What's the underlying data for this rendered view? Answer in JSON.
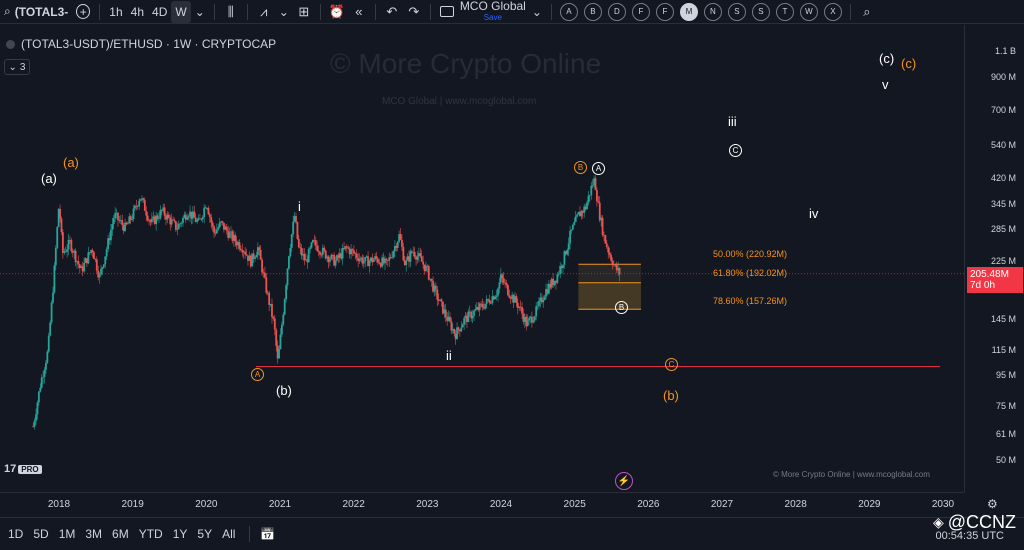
{
  "toolbar": {
    "symbol": "(TOTAL3-",
    "intervals": [
      "1h",
      "4h",
      "4D",
      "W"
    ],
    "active_interval": "W",
    "layout_name": "MCO Global",
    "layout_save": "Save",
    "circle_buttons": [
      "A",
      "B",
      "D",
      "F",
      "F",
      "M",
      "N",
      "S",
      "S",
      "T",
      "W",
      "X"
    ],
    "active_circle": "M"
  },
  "legend": {
    "title": "(TOTAL3-USDT)/ETHUSD · 1W · CRYPTOCAP",
    "collapse_count": "3"
  },
  "watermark": {
    "main": "© More Crypto Online",
    "sub": "MCO Global   |   www.mcoglobal.com"
  },
  "credit": "© More Crypto Online   |   www.mcoglobal.com",
  "tv_logo": {
    "mark": "17",
    "pro": "PRO"
  },
  "price_axis": {
    "ticks": [
      "1.1 B",
      "900 M",
      "700 M",
      "540 M",
      "420 M",
      "345 M",
      "285 M",
      "225 M",
      "145 M",
      "115 M",
      "95 M",
      "75 M",
      "61 M",
      "50 M"
    ],
    "current_price": "205.48M",
    "countdown": "7d 0h"
  },
  "time_axis": {
    "ticks": [
      "2018",
      "2019",
      "2020",
      "2021",
      "2022",
      "2023",
      "2024",
      "2025",
      "2026",
      "2027",
      "2028",
      "2029",
      "2030"
    ]
  },
  "fib_levels": [
    {
      "label": "50.00% (220.92M)",
      "price": 220.92
    },
    {
      "label": "61.80% (192.02M)",
      "price": 192.02
    },
    {
      "label": "78.60% (157.26M)",
      "price": 157.26
    }
  ],
  "wave_labels": {
    "a_white": "(a)",
    "a_orange": "(a)",
    "b_white": "(b)",
    "b_orange": "(b)",
    "c_white": "(c)",
    "c_orange": "(c)",
    "i": "i",
    "ii": "ii",
    "iii": "iii",
    "iv": "iv",
    "v": "v",
    "circ_A_white": "A",
    "circ_B_orange": "B",
    "circ_B_white": "B",
    "circ_A_orange": "A",
    "circ_C_orange": "C",
    "circ_C_white": "C"
  },
  "indicator_badge": "⚡",
  "bottom_bar": {
    "ranges": [
      "1D",
      "5D",
      "1M",
      "3M",
      "6M",
      "YTD",
      "1Y",
      "5Y",
      "All"
    ],
    "clock": "00:54:35 UTC"
  },
  "overlay": {
    "ccnz": "@CCNZ"
  },
  "colors": {
    "up": "#26a69a",
    "down": "#ef5350",
    "fib": "#f7931a",
    "support": "#f23645",
    "background": "#131722"
  },
  "chart_data": {
    "type": "candlestick",
    "log_scale": true,
    "x_range": [
      2017.5,
      2030.2
    ],
    "y_range_millions": [
      45,
      1200
    ],
    "current_price_millions": 205.48,
    "support_line_millions": 102,
    "path": [
      [
        2017.65,
        65
      ],
      [
        2017.75,
        90
      ],
      [
        2017.85,
        115
      ],
      [
        2017.93,
        200
      ],
      [
        2018.0,
        350
      ],
      [
        2018.05,
        240
      ],
      [
        2018.15,
        260
      ],
      [
        2018.3,
        210
      ],
      [
        2018.45,
        250
      ],
      [
        2018.55,
        200
      ],
      [
        2018.65,
        250
      ],
      [
        2018.75,
        320
      ],
      [
        2018.9,
        290
      ],
      [
        2019.0,
        320
      ],
      [
        2019.1,
        370
      ],
      [
        2019.25,
        300
      ],
      [
        2019.4,
        330
      ],
      [
        2019.6,
        290
      ],
      [
        2019.75,
        330
      ],
      [
        2019.9,
        300
      ],
      [
        2020.0,
        355
      ],
      [
        2020.1,
        280
      ],
      [
        2020.2,
        300
      ],
      [
        2020.35,
        270
      ],
      [
        2020.5,
        250
      ],
      [
        2020.6,
        225
      ],
      [
        2020.7,
        250
      ],
      [
        2020.82,
        180
      ],
      [
        2020.92,
        140
      ],
      [
        2020.97,
        105
      ],
      [
        2021.05,
        160
      ],
      [
        2021.12,
        240
      ],
      [
        2021.2,
        320
      ],
      [
        2021.25,
        250
      ],
      [
        2021.35,
        225
      ],
      [
        2021.45,
        260
      ],
      [
        2021.6,
        240
      ],
      [
        2021.75,
        225
      ],
      [
        2021.9,
        250
      ],
      [
        2022.0,
        240
      ],
      [
        2022.15,
        225
      ],
      [
        2022.3,
        230
      ],
      [
        2022.45,
        220
      ],
      [
        2022.55,
        250
      ],
      [
        2022.62,
        275
      ],
      [
        2022.7,
        220
      ],
      [
        2022.8,
        245
      ],
      [
        2022.9,
        230
      ],
      [
        2023.0,
        210
      ],
      [
        2023.1,
        180
      ],
      [
        2023.25,
        150
      ],
      [
        2023.38,
        130
      ],
      [
        2023.5,
        145
      ],
      [
        2023.65,
        155
      ],
      [
        2023.8,
        165
      ],
      [
        2023.95,
        180
      ],
      [
        2024.0,
        200
      ],
      [
        2024.1,
        180
      ],
      [
        2024.25,
        160
      ],
      [
        2024.35,
        140
      ],
      [
        2024.48,
        155
      ],
      [
        2024.6,
        180
      ],
      [
        2024.75,
        200
      ],
      [
        2024.85,
        230
      ],
      [
        2024.95,
        280
      ],
      [
        2025.05,
        320
      ],
      [
        2025.15,
        340
      ],
      [
        2025.22,
        390
      ],
      [
        2025.27,
        420
      ],
      [
        2025.33,
        330
      ],
      [
        2025.4,
        270
      ],
      [
        2025.47,
        240
      ],
      [
        2025.55,
        215
      ],
      [
        2025.62,
        205
      ]
    ]
  }
}
